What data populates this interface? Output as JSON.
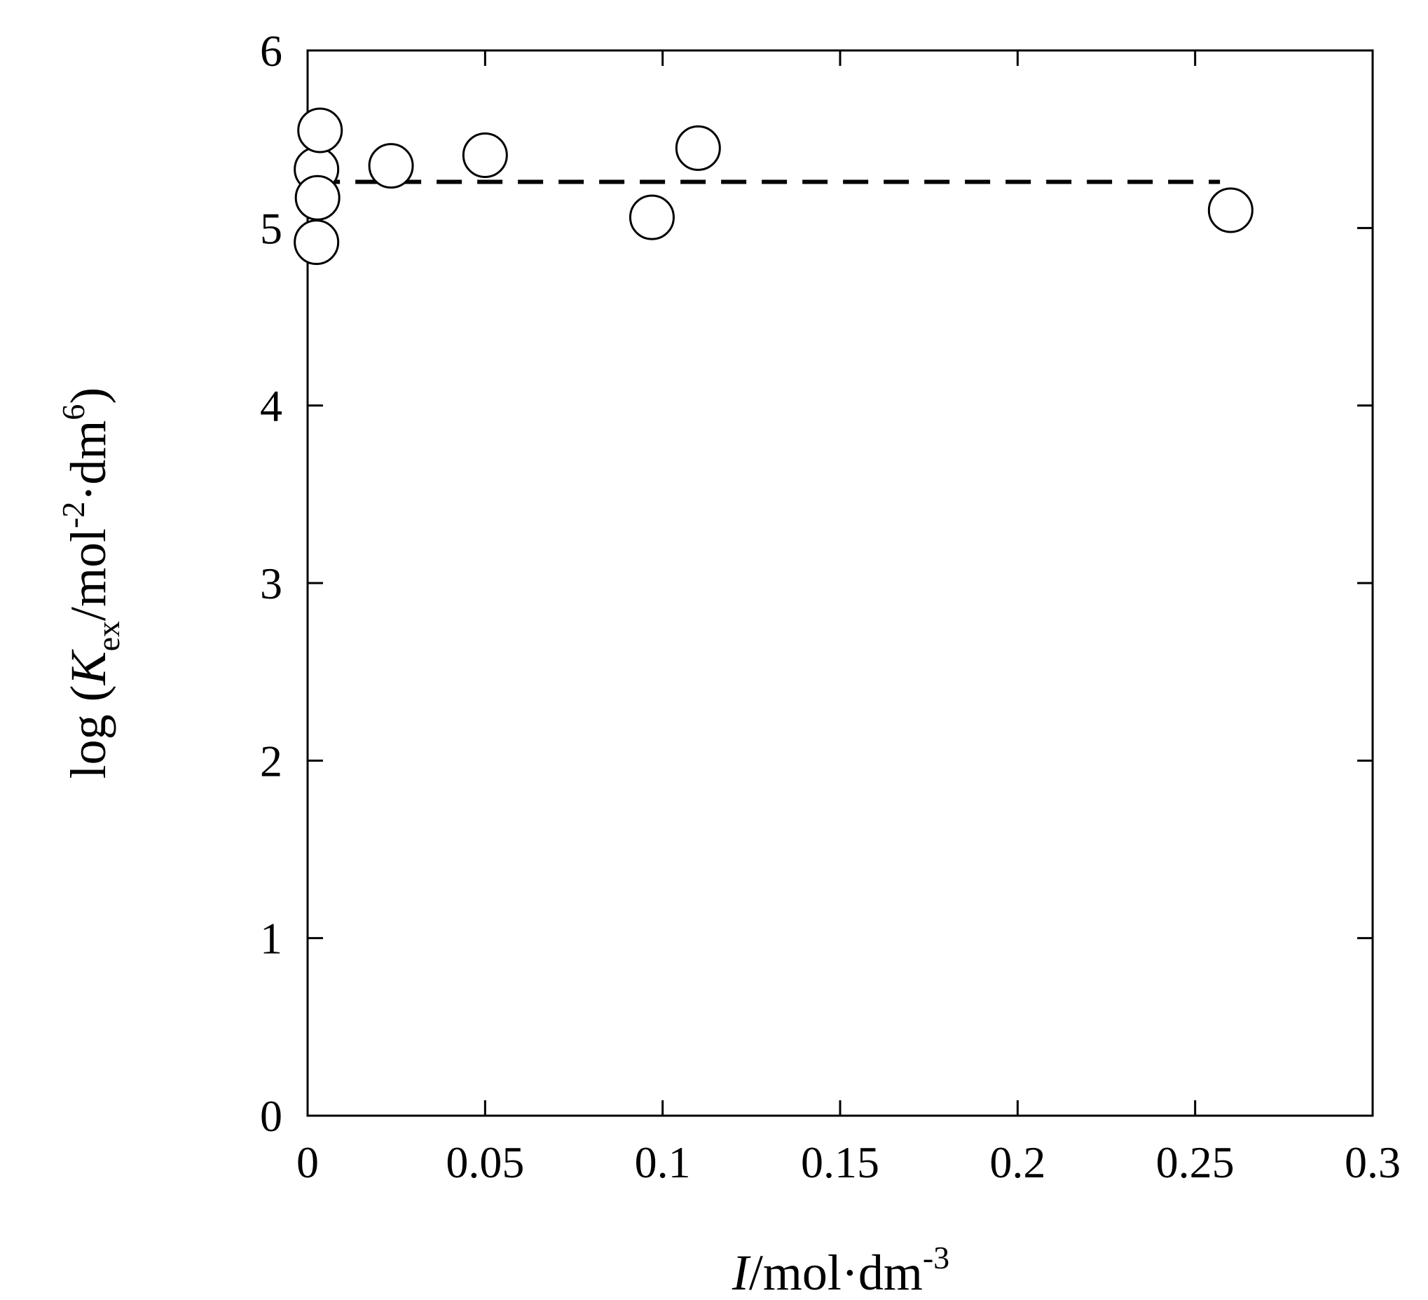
{
  "chart_data": {
    "type": "scatter",
    "xlabel": {
      "italic": "I",
      "unit": "/mol·dm",
      "sup": "-3"
    },
    "ylabel": {
      "prefix": "log (",
      "italic": "K",
      "sub": "ex",
      "unit1": "/mol",
      "sup1": "-2",
      "unit2": "·dm",
      "sup2": "6",
      "suffix": ")"
    },
    "xlim": [
      0,
      0.3
    ],
    "ylim": [
      0,
      6
    ],
    "xticks": [
      0,
      0.05,
      0.1,
      0.15,
      0.2,
      0.25,
      0.3
    ],
    "xtick_labels": [
      "0",
      "0.05",
      "0.1",
      "0.15",
      "0.2",
      "0.25",
      "0.3"
    ],
    "yticks": [
      0,
      1,
      2,
      3,
      4,
      5,
      6
    ],
    "ytick_labels": [
      "0",
      "1",
      "2",
      "3",
      "4",
      "5",
      "6"
    ],
    "grid": false,
    "series": [
      {
        "marker": "open-circle",
        "points": [
          {
            "x": 0.0025,
            "y": 5.33
          },
          {
            "x": 0.0035,
            "y": 5.55
          },
          {
            "x": 0.0028,
            "y": 5.17
          },
          {
            "x": 0.0025,
            "y": 4.92
          },
          {
            "x": 0.0235,
            "y": 5.35
          },
          {
            "x": 0.05,
            "y": 5.41
          },
          {
            "x": 0.097,
            "y": 5.06
          },
          {
            "x": 0.11,
            "y": 5.45
          },
          {
            "x": 0.26,
            "y": 5.1
          }
        ]
      }
    ],
    "reference_line": {
      "style": "dashed",
      "y": 5.26,
      "x_start": 0.002,
      "x_end": 0.257
    }
  }
}
